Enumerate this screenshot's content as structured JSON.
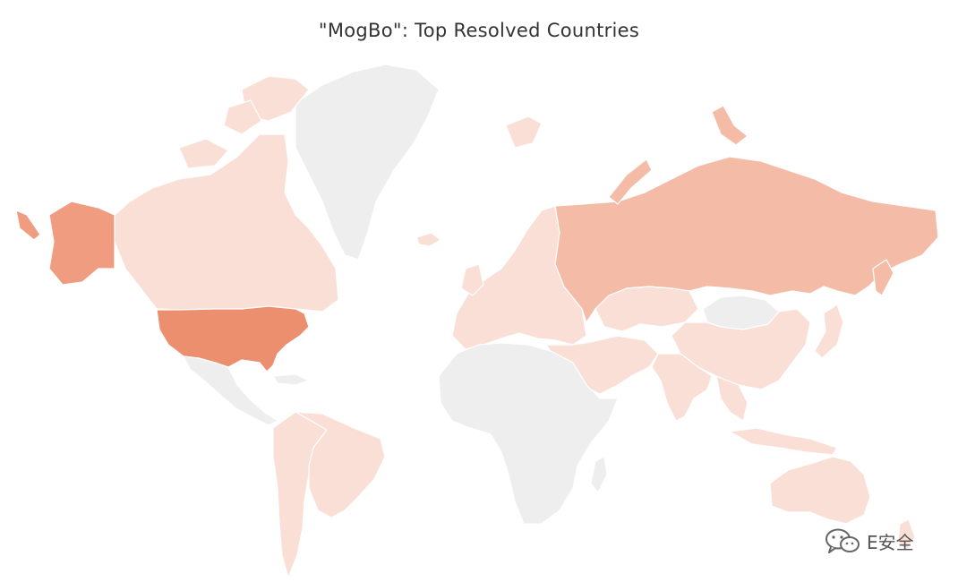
{
  "title": "\"MogBo\": Top Resolved Countries",
  "legend_colors": {
    "none": "#eeeeee",
    "low": "#fadfd6",
    "mid": "#f4bca7",
    "high": "#ef9c80",
    "highest": "#ec8f6e"
  },
  "regions": [
    {
      "name": "United States",
      "level": "highest"
    },
    {
      "name": "Alaska",
      "level": "high"
    },
    {
      "name": "Russia",
      "level": "mid"
    },
    {
      "name": "Canada",
      "level": "low"
    },
    {
      "name": "Greenland",
      "level": "none"
    },
    {
      "name": "Mexico",
      "level": "none"
    },
    {
      "name": "Brazil",
      "level": "low"
    },
    {
      "name": "Africa",
      "level": "none"
    },
    {
      "name": "Mongolia",
      "level": "none"
    },
    {
      "name": "China",
      "level": "low"
    },
    {
      "name": "India",
      "level": "low"
    },
    {
      "name": "Australia",
      "level": "low"
    },
    {
      "name": "Europe",
      "level": "low"
    },
    {
      "name": "Kazakhstan",
      "level": "low"
    },
    {
      "name": "Middle East",
      "level": "low"
    },
    {
      "name": "Southeast Asia",
      "level": "low"
    },
    {
      "name": "Japan",
      "level": "low"
    }
  ],
  "watermark": {
    "text": "E安全",
    "icon": "wechat-icon"
  }
}
